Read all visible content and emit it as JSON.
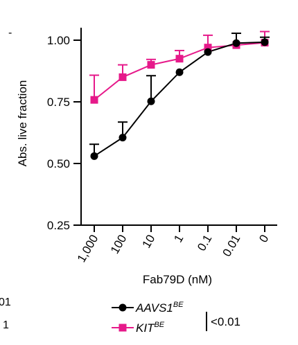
{
  "chart_data": {
    "type": "line",
    "xlabel": "Fab79D (nM)",
    "ylabel": "Abs. live fraction",
    "categories": [
      "1,000",
      "100",
      "10",
      "1",
      "0.1",
      "0.01",
      "0"
    ],
    "ylim": [
      0.25,
      1.04
    ],
    "yticks": [
      0.25,
      0.5,
      0.75,
      1.0
    ],
    "ytick_labels": [
      "0.25",
      "0.50",
      "0.75",
      "1.00"
    ],
    "grid": false,
    "series": [
      {
        "name": "AAVS1",
        "name_superscript": "BE",
        "color": "#000000",
        "marker": "circle",
        "values": [
          0.53,
          0.605,
          0.752,
          0.87,
          0.952,
          0.988,
          0.992
        ],
        "error": [
          0.048,
          0.063,
          0.104,
          0.0,
          0.0,
          0.04,
          0.02
        ]
      },
      {
        "name": "KIT",
        "name_superscript": "BE",
        "color": "#e6198a",
        "marker": "square",
        "values": [
          0.758,
          0.85,
          0.9,
          0.925,
          0.97,
          0.98,
          0.99
        ],
        "error": [
          0.1,
          0.05,
          0.022,
          0.033,
          0.05,
          0.0,
          0.045
        ]
      }
    ],
    "annotation": "<0.01",
    "legend_position": "bottom"
  },
  "edge_fragments": {
    "top_left": "-",
    "bottom_left_1": "01",
    "bottom_left_2": "1"
  }
}
